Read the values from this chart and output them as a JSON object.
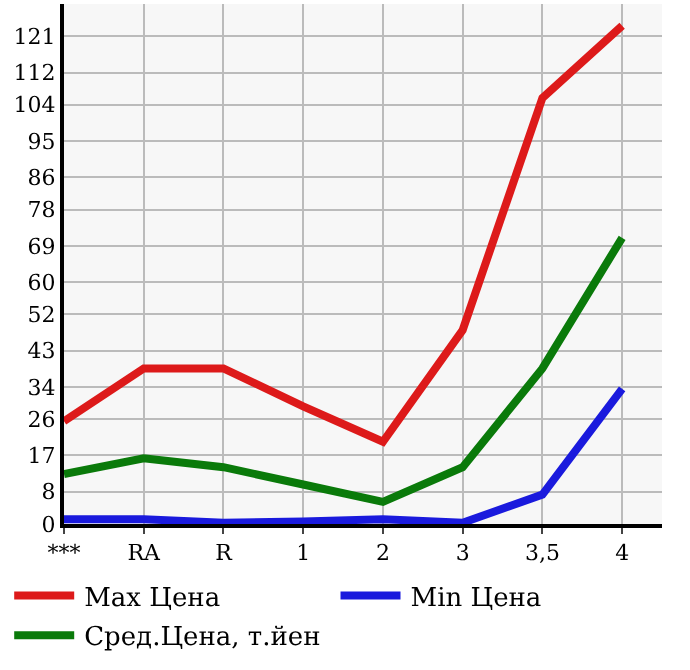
{
  "chart_data": {
    "type": "line",
    "categories": [
      "***",
      "RA",
      "R",
      "1",
      "2",
      "3",
      "3,5",
      "4"
    ],
    "series": [
      {
        "name": "Max Цена",
        "color": "#dd1a1a",
        "values": [
          25.5,
          38.6,
          38.6,
          29.2,
          20.4,
          48.1,
          105.7,
          123.6
        ]
      },
      {
        "name": "Min Цена",
        "color": "#1a1add",
        "values": [
          1.2,
          1.2,
          0.3,
          0.6,
          1.2,
          0.3,
          7.3,
          33.5
        ]
      },
      {
        "name": "Сред.Цена, т.йен",
        "color": "#0a7a0a",
        "values": [
          12.4,
          16.3,
          14.1,
          9.8,
          5.5,
          14.1,
          38.6,
          71
        ]
      }
    ],
    "ylim": [
      0,
      129
    ],
    "yticks": [
      0,
      8,
      17,
      26,
      34,
      43,
      52,
      60,
      69,
      78,
      86,
      95,
      104,
      112,
      121
    ],
    "grid": true,
    "legend": "bottom",
    "marker": "none",
    "line_style": "solid"
  }
}
